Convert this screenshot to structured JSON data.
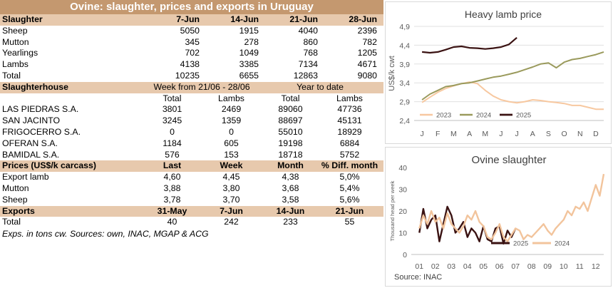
{
  "report": {
    "title": "Ovine: slaughter, prices and exports in Uruguay",
    "slaughter": {
      "header": [
        "Slaughter",
        "7-Jun",
        "14-Jun",
        "21-Jun",
        "28-Jun"
      ],
      "rows": [
        [
          "Sheep",
          "5050",
          "1915",
          "4040",
          "2396"
        ],
        [
          "Mutton",
          "345",
          "278",
          "860",
          "782"
        ],
        [
          "Yearlings",
          "702",
          "1049",
          "768",
          "1205"
        ],
        [
          "Lambs",
          "4138",
          "3385",
          "7134",
          "4671"
        ],
        [
          "Total",
          "10235",
          "6655",
          "12863",
          "9080"
        ]
      ]
    },
    "slaughterhouse": {
      "label": "Slaughterhouse",
      "week_label": "Week from  21/06 - 28/06",
      "ytd_label": "Year to date",
      "subheader": [
        "",
        "Total",
        "Lambs",
        "Total",
        "Lambs"
      ],
      "rows": [
        [
          "LAS PIEDRAS S.A.",
          "3801",
          "2469",
          "89060",
          "47736"
        ],
        [
          "SAN JACINTO",
          "3245",
          "1359",
          "88697",
          "45131"
        ],
        [
          "FRIGOCERRO S.A.",
          "0",
          "0",
          "55010",
          "18929"
        ],
        [
          "OFERAN S.A.",
          "1184",
          "605",
          "19198",
          "6884"
        ],
        [
          "BAMIDAL S.A.",
          "576",
          "153",
          "18718",
          "5752"
        ]
      ]
    },
    "prices": {
      "header": [
        "Prices (US$/k carcass)",
        "Last",
        "Week",
        "Month",
        "% Diff. month"
      ],
      "rows": [
        [
          "Export lamb",
          "4,60",
          "4,45",
          "4,38",
          "5,0%"
        ],
        [
          "Mutton",
          "3,88",
          "3,80",
          "3,68",
          "5,4%"
        ],
        [
          "Sheep",
          "3,78",
          "3,70",
          "3,58",
          "5,6%"
        ]
      ]
    },
    "exports": {
      "header": [
        "Exports",
        "31-May",
        "7-Jun",
        "14-Jun",
        "21-Jun"
      ],
      "rows": [
        [
          "Total",
          "40",
          "242",
          "233",
          "55"
        ]
      ]
    },
    "note": "Exps. in tons cw. Sources: own, INAC, MGAP & ACG"
  },
  "chart_data": [
    {
      "type": "line",
      "title": "Heavy lamb price",
      "ylabel": "US$/k cwt",
      "xlabel": "",
      "ylim": [
        2.4,
        4.9
      ],
      "yticks": [
        "2,4",
        "2,9",
        "3,4",
        "3,9",
        "4,4",
        "4,9"
      ],
      "x_tick_labels": [
        "J",
        "F",
        "M",
        "A",
        "M",
        "J",
        "J",
        "A",
        "S",
        "O",
        "N",
        "D"
      ],
      "grid": true,
      "legend": "bottom",
      "series": [
        {
          "name": "2023",
          "color": "#f7c8a0",
          "x": [
            0,
            0.5,
            1,
            1.5,
            2,
            2.5,
            3,
            3.5,
            4,
            4.5,
            5,
            5.5,
            6,
            6.5,
            7,
            7.5,
            8,
            8.5,
            9,
            9.5,
            10,
            10.5,
            11,
            11.5
          ],
          "y": [
            2.88,
            3.02,
            3.15,
            3.25,
            3.32,
            3.38,
            3.42,
            3.38,
            3.2,
            3.05,
            2.95,
            2.9,
            2.87,
            2.9,
            2.95,
            2.93,
            2.9,
            2.88,
            2.85,
            2.8,
            2.8,
            2.75,
            2.7,
            2.7
          ]
        },
        {
          "name": "2024",
          "color": "#9a9a5c",
          "x": [
            0,
            0.5,
            1,
            1.5,
            2,
            2.5,
            3,
            3.5,
            4,
            4.5,
            5,
            5.5,
            6,
            6.5,
            7,
            7.5,
            8,
            8.5,
            9,
            9.5,
            10,
            10.5,
            11,
            11.5
          ],
          "y": [
            2.95,
            3.1,
            3.2,
            3.3,
            3.33,
            3.38,
            3.4,
            3.45,
            3.5,
            3.55,
            3.58,
            3.63,
            3.68,
            3.75,
            3.82,
            3.9,
            3.93,
            3.8,
            3.95,
            4.02,
            4.05,
            4.1,
            4.15,
            4.22
          ]
        },
        {
          "name": "2025",
          "color": "#3a1212",
          "x": [
            0,
            0.5,
            1,
            1.5,
            2,
            2.5,
            3,
            3.5,
            4,
            4.5,
            5,
            5.5,
            6
          ],
          "y": [
            4.22,
            4.2,
            4.22,
            4.28,
            4.35,
            4.37,
            4.33,
            4.32,
            4.3,
            4.32,
            4.35,
            4.42,
            4.6
          ]
        }
      ]
    },
    {
      "type": "line",
      "title": "Ovine slaughter",
      "ylabel": "Thousand head per week",
      "xlabel": "",
      "ylim": [
        0,
        40
      ],
      "yticks": [
        "0",
        "10",
        "20",
        "30",
        "40"
      ],
      "x_tick_labels": [
        "01",
        "02",
        "03",
        "04",
        "05",
        "06",
        "07",
        "08",
        "09",
        "10",
        "11",
        "12"
      ],
      "grid": false,
      "legend": "bottom-center",
      "source": "Source: INAC",
      "series": [
        {
          "name": "2025",
          "color": "#3a1212",
          "x": [
            0,
            0.25,
            0.5,
            0.75,
            1,
            1.25,
            1.5,
            1.75,
            2,
            2.25,
            2.5,
            2.75,
            3,
            3.25,
            3.5,
            3.75,
            4,
            4.25,
            4.5,
            4.75,
            5,
            5.25,
            5.5,
            5.75,
            6
          ],
          "y": [
            10,
            21,
            12,
            16,
            18,
            6,
            14,
            22,
            18,
            10,
            12,
            15,
            8,
            12,
            10,
            6,
            13,
            7,
            6,
            12,
            13,
            5,
            11,
            8,
            12
          ]
        },
        {
          "name": "2024",
          "color": "#f2c49c",
          "x": [
            0,
            0.25,
            0.5,
            0.75,
            1,
            1.25,
            1.5,
            1.75,
            2,
            2.25,
            2.5,
            2.75,
            3,
            3.25,
            3.5,
            3.75,
            4,
            4.25,
            4.5,
            4.75,
            5,
            5.25,
            5.5,
            5.75,
            6,
            6.25,
            6.5,
            6.75,
            7,
            7.25,
            7.5,
            7.75,
            8,
            8.25,
            8.5,
            8.75,
            9,
            9.25,
            9.5,
            9.75,
            10,
            10.25,
            10.5,
            10.75,
            11,
            11.25,
            11.5
          ],
          "y": [
            12,
            18,
            14,
            20,
            15,
            17,
            12,
            19,
            14,
            12,
            10,
            13,
            18,
            16,
            20,
            15,
            13,
            8,
            7,
            10,
            14,
            8,
            6,
            9,
            12,
            11,
            7,
            9,
            8,
            10,
            12,
            14,
            11,
            9,
            12,
            14,
            16,
            20,
            18,
            22,
            21,
            24,
            20,
            26,
            32,
            27,
            37
          ]
        }
      ]
    }
  ]
}
